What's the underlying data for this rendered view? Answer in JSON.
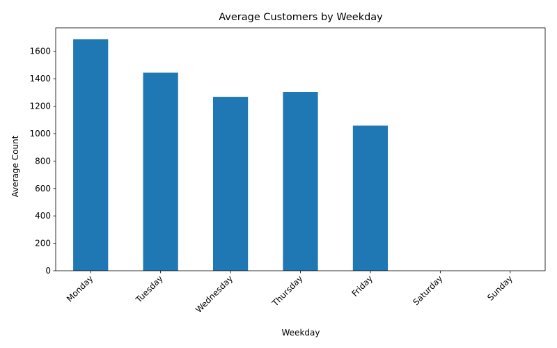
{
  "chart_data": {
    "type": "bar",
    "title": "Average Customers by Weekday",
    "xlabel": "Weekday",
    "ylabel": "Average Count",
    "categories": [
      "Monday",
      "Tuesday",
      "Wednesday",
      "Thursday",
      "Friday",
      "Saturday",
      "Sunday"
    ],
    "values": [
      1688,
      1444,
      1268,
      1304,
      1058,
      0,
      0
    ],
    "ylim": [
      0,
      1771
    ],
    "yticks": [
      0,
      200,
      400,
      600,
      800,
      1000,
      1200,
      1400,
      1600
    ],
    "ytick_labels": [
      "0",
      "200",
      "400",
      "600",
      "800",
      "1000",
      "1200",
      "1400",
      "1600"
    ],
    "grid": false,
    "bar_color": "#1f77b4"
  }
}
